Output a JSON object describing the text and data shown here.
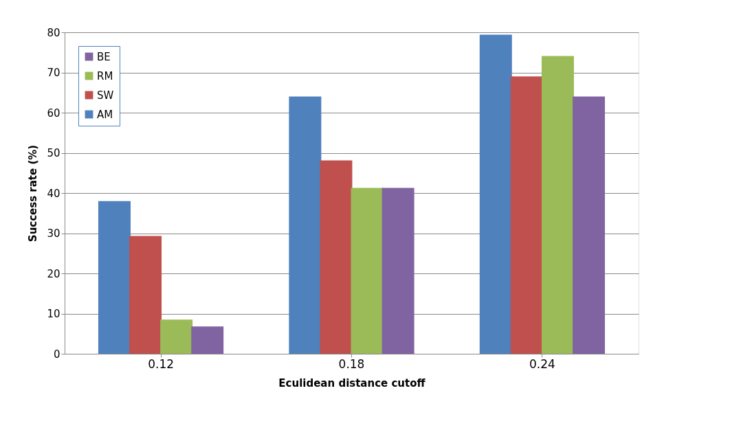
{
  "chart_data": {
    "type": "bar",
    "xlabel": "Eculidean distance cutoff",
    "ylabel": "Success rate (%)",
    "categories": [
      "0.12",
      "0.18",
      "0.24"
    ],
    "series": [
      {
        "name": "AM",
        "color": "#4f81bd",
        "values": [
          38,
          64,
          79.4
        ]
      },
      {
        "name": "SW",
        "color": "#c0504d",
        "values": [
          29.3,
          48.1,
          69
        ]
      },
      {
        "name": "RM",
        "color": "#9bbb59",
        "values": [
          8.5,
          41.3,
          74.1
        ]
      },
      {
        "name": "BE",
        "color": "#8064a2",
        "values": [
          6.8,
          41.3,
          64
        ]
      }
    ],
    "ylim": [
      0,
      80
    ],
    "yticks": [
      0,
      10,
      20,
      30,
      40,
      50,
      60,
      70,
      80
    ],
    "grid": "y",
    "legend": "top left"
  }
}
